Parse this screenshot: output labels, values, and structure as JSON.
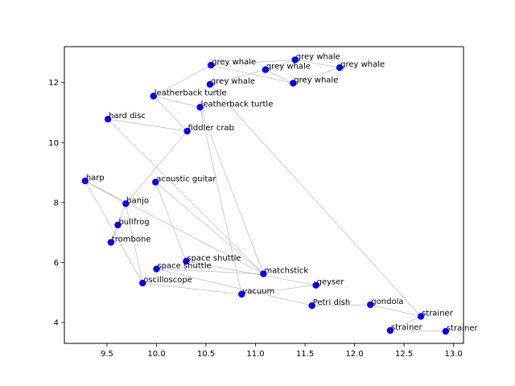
{
  "chart_data": {
    "type": "scatter",
    "title": "",
    "xlabel": "",
    "ylabel": "",
    "xlim": [
      9.07,
      13.1
    ],
    "ylim": [
      3.3,
      13.2
    ],
    "x_ticks": [
      9.5,
      10.0,
      10.5,
      11.0,
      11.5,
      12.0,
      12.5,
      13.0
    ],
    "x_tick_labels": [
      "9.5",
      "10.0",
      "10.5",
      "11.0",
      "11.5",
      "12.0",
      "12.5",
      "13.0"
    ],
    "y_ticks": [
      4,
      6,
      8,
      10,
      12
    ],
    "y_tick_labels": [
      "4",
      "6",
      "8",
      "10",
      "12"
    ],
    "grid": false,
    "point_color": "#0000ff",
    "edge_color": "#b0b0b0",
    "points": [
      {
        "label": "grey whale",
        "x": 10.55,
        "y": 12.58
      },
      {
        "label": "grey whale",
        "x": 11.4,
        "y": 12.76
      },
      {
        "label": "grey whale",
        "x": 11.1,
        "y": 12.43
      },
      {
        "label": "grey whale",
        "x": 11.85,
        "y": 12.5
      },
      {
        "label": "grey whale",
        "x": 10.54,
        "y": 11.94
      },
      {
        "label": "grey whale",
        "x": 11.38,
        "y": 11.98
      },
      {
        "label": "leatherback turtle",
        "x": 9.97,
        "y": 11.55
      },
      {
        "label": "leatherback turtle",
        "x": 10.44,
        "y": 11.18
      },
      {
        "label": "hard disc",
        "x": 9.51,
        "y": 10.78
      },
      {
        "label": "fiddler crab",
        "x": 10.31,
        "y": 10.38
      },
      {
        "label": "harp",
        "x": 9.28,
        "y": 8.72
      },
      {
        "label": "acoustic guitar",
        "x": 9.99,
        "y": 8.68
      },
      {
        "label": "banjo",
        "x": 9.69,
        "y": 7.96
      },
      {
        "label": "bullfrog",
        "x": 9.61,
        "y": 7.25
      },
      {
        "label": "trombone",
        "x": 9.54,
        "y": 6.67
      },
      {
        "label": "space shuttle",
        "x": 10.3,
        "y": 6.04
      },
      {
        "label": "space shuttle",
        "x": 10.0,
        "y": 5.78
      },
      {
        "label": "oscilloscope",
        "x": 9.86,
        "y": 5.31
      },
      {
        "label": "matchstick",
        "x": 11.08,
        "y": 5.62
      },
      {
        "label": "vacuum",
        "x": 10.86,
        "y": 4.94
      },
      {
        "label": "geyser",
        "x": 11.61,
        "y": 5.24
      },
      {
        "label": "Petri dish",
        "x": 11.57,
        "y": 4.56
      },
      {
        "label": "gondola",
        "x": 12.16,
        "y": 4.59
      },
      {
        "label": "strainer",
        "x": 12.67,
        "y": 4.2
      },
      {
        "label": "strainer",
        "x": 12.36,
        "y": 3.73
      },
      {
        "label": "strainer",
        "x": 12.92,
        "y": 3.7
      }
    ],
    "edges": [
      [
        0,
        1
      ],
      [
        0,
        6
      ],
      [
        0,
        5
      ],
      [
        1,
        3
      ],
      [
        1,
        2
      ],
      [
        2,
        4
      ],
      [
        2,
        5
      ],
      [
        3,
        5
      ],
      [
        4,
        23
      ],
      [
        6,
        7
      ],
      [
        6,
        9
      ],
      [
        7,
        18
      ],
      [
        7,
        19
      ],
      [
        8,
        9
      ],
      [
        8,
        18
      ],
      [
        9,
        12
      ],
      [
        10,
        12
      ],
      [
        10,
        17
      ],
      [
        10,
        18
      ],
      [
        11,
        15
      ],
      [
        11,
        18
      ],
      [
        12,
        14
      ],
      [
        12,
        17
      ],
      [
        13,
        14
      ],
      [
        15,
        20
      ],
      [
        16,
        18
      ],
      [
        16,
        21
      ],
      [
        17,
        19
      ],
      [
        19,
        20
      ],
      [
        21,
        22
      ],
      [
        22,
        23
      ],
      [
        23,
        24
      ],
      [
        24,
        25
      ]
    ]
  }
}
